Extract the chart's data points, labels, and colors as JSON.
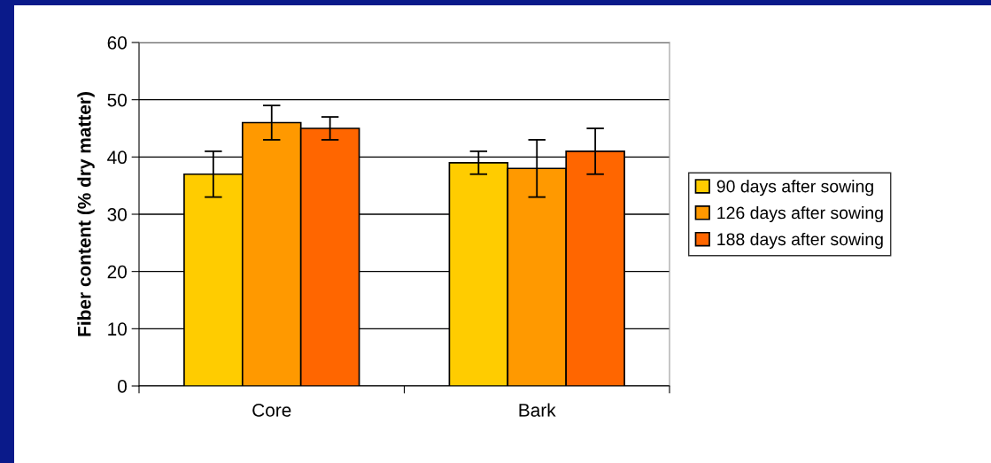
{
  "chart_data": {
    "type": "bar",
    "ylabel": "Fiber content (% dry matter)",
    "categories": [
      "Core",
      "Bark"
    ],
    "series": [
      {
        "name": "90 days after sowing",
        "color": "#ffcc00",
        "values": [
          37,
          39
        ],
        "errors": [
          [
            33,
            41
          ],
          [
            37,
            41
          ]
        ]
      },
      {
        "name": "126 days after sowing",
        "color": "#ff9900",
        "values": [
          46,
          38
        ],
        "errors": [
          [
            43,
            49
          ],
          [
            33,
            43
          ]
        ]
      },
      {
        "name": "188 days after sowing",
        "color": "#ff6600",
        "values": [
          45,
          41
        ],
        "errors": [
          [
            43,
            47
          ],
          [
            37,
            45
          ]
        ]
      }
    ],
    "ylim": [
      0,
      60
    ],
    "yticks": [
      0,
      10,
      20,
      30,
      40,
      50,
      60
    ],
    "grid": "y",
    "legend": "right"
  }
}
